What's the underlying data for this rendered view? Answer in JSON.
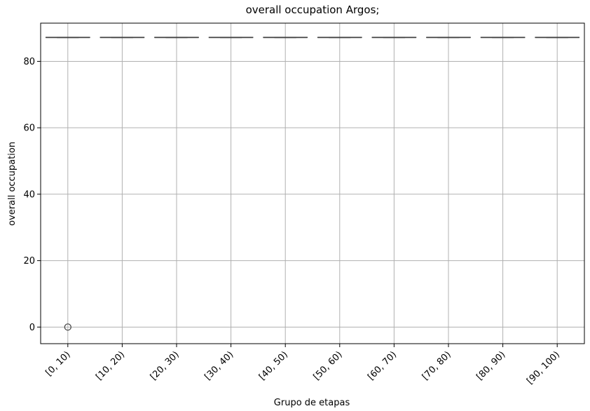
{
  "chart_data": {
    "type": "box",
    "title": "overall occupation Argos;",
    "xlabel": "Grupo de etapas",
    "ylabel": "overall occupation",
    "categories": [
      "[0, 10)",
      "[10, 20)",
      "[20, 30)",
      "[30, 40)",
      "[40, 50)",
      "[50, 60)",
      "[60, 70)",
      "[70, 80)",
      "[80, 90)",
      "[90, 100)"
    ],
    "boxes": [
      {
        "category": "[0, 10)",
        "median": 87.2,
        "q1": 87.2,
        "q3": 87.2,
        "whisker_low": 87.2,
        "whisker_high": 87.2,
        "outliers": [
          0
        ]
      },
      {
        "category": "[10, 20)",
        "median": 87.2,
        "q1": 87.2,
        "q3": 87.2,
        "whisker_low": 87.2,
        "whisker_high": 87.2,
        "outliers": []
      },
      {
        "category": "[20, 30)",
        "median": 87.2,
        "q1": 87.2,
        "q3": 87.2,
        "whisker_low": 87.2,
        "whisker_high": 87.2,
        "outliers": []
      },
      {
        "category": "[30, 40)",
        "median": 87.2,
        "q1": 87.2,
        "q3": 87.2,
        "whisker_low": 87.2,
        "whisker_high": 87.2,
        "outliers": []
      },
      {
        "category": "[40, 50)",
        "median": 87.2,
        "q1": 87.2,
        "q3": 87.2,
        "whisker_low": 87.2,
        "whisker_high": 87.2,
        "outliers": []
      },
      {
        "category": "[50, 60)",
        "median": 87.2,
        "q1": 87.2,
        "q3": 87.2,
        "whisker_low": 87.2,
        "whisker_high": 87.2,
        "outliers": []
      },
      {
        "category": "[60, 70)",
        "median": 87.2,
        "q1": 87.2,
        "q3": 87.2,
        "whisker_low": 87.2,
        "whisker_high": 87.2,
        "outliers": []
      },
      {
        "category": "[70, 80)",
        "median": 87.2,
        "q1": 87.2,
        "q3": 87.2,
        "whisker_low": 87.2,
        "whisker_high": 87.2,
        "outliers": []
      },
      {
        "category": "[80, 90)",
        "median": 87.2,
        "q1": 87.2,
        "q3": 87.2,
        "whisker_low": 87.2,
        "whisker_high": 87.2,
        "outliers": []
      },
      {
        "category": "[90, 100)",
        "median": 87.2,
        "q1": 87.2,
        "q3": 87.2,
        "whisker_low": 87.2,
        "whisker_high": 87.2,
        "outliers": []
      }
    ],
    "yticks": [
      0,
      20,
      40,
      60,
      80
    ],
    "ylim": [
      -5,
      91.5
    ],
    "grid": true,
    "legend": "none",
    "colors": {
      "box": "#3f3f3f",
      "grid": "#b0b0b0",
      "axis": "#000000"
    }
  }
}
